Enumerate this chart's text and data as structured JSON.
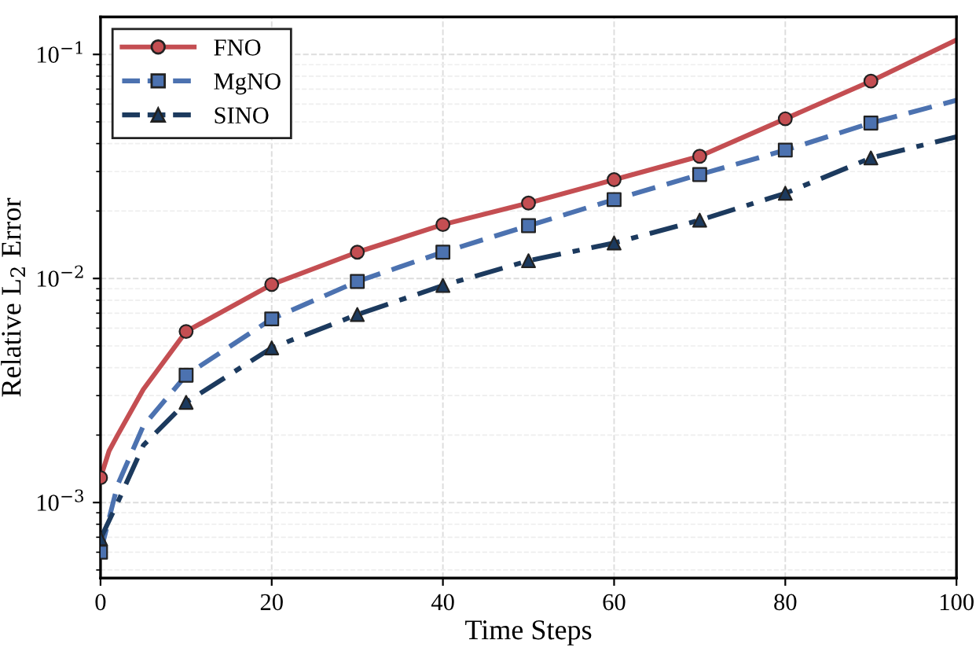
{
  "chart_data": {
    "type": "line",
    "xlabel": "Time Steps",
    "ylabel": "Relative L$_{2}$ Error",
    "log": "y",
    "grid": true,
    "legend": "top left",
    "xlim": [
      0,
      100
    ],
    "xticks": [
      0,
      20,
      40,
      60,
      80,
      100
    ],
    "ylim": [
      0.00046,
      0.147
    ],
    "yticks": [
      {
        "value": 0.001,
        "label": "10$^{−3}$"
      },
      {
        "value": 0.01,
        "label": "10$^{−2}$"
      },
      {
        "value": 0.1,
        "label": "10$^{−1}$"
      }
    ],
    "series": [
      {
        "name": "FNO",
        "color": "#c44e52",
        "line_style": "solid",
        "marker": "none",
        "x": [
          0,
          1,
          2,
          5,
          10,
          20,
          30,
          40,
          50,
          60,
          70,
          80,
          90,
          100
        ],
        "values": [
          0.00129,
          0.0017,
          0.002,
          0.0032,
          0.0058,
          0.0094,
          0.0131,
          0.0174,
          0.0217,
          0.0276,
          0.0351,
          0.0516,
          0.076,
          0.116
        ]
      },
      {
        "type": "scatter",
        "color": "#c44e52",
        "marker": "circle",
        "x": [
          0,
          10,
          20,
          30,
          40,
          50,
          60,
          70,
          80,
          90
        ],
        "values": [
          0.00129,
          0.0058,
          0.0094,
          0.0131,
          0.0174,
          0.0217,
          0.0276,
          0.0351,
          0.0516,
          0.076
        ]
      },
      {
        "name": "MgNO",
        "color": "#4c72b0",
        "line_style": "dashed",
        "marker": "none",
        "x": [
          0,
          2,
          5,
          10,
          20,
          30,
          40,
          50,
          60,
          70,
          80,
          90,
          100
        ],
        "values": [
          0.0006,
          0.0012,
          0.0022,
          0.0037,
          0.0066,
          0.0097,
          0.0131,
          0.0172,
          0.0225,
          0.0291,
          0.0374,
          0.0494,
          0.0624
        ]
      },
      {
        "type": "scatter",
        "color": "#4c72b0",
        "marker": "square",
        "x": [
          0,
          10,
          20,
          30,
          40,
          50,
          60,
          70,
          80,
          90
        ],
        "values": [
          0.0006,
          0.0037,
          0.0066,
          0.0097,
          0.0131,
          0.0172,
          0.0225,
          0.0291,
          0.0374,
          0.0494
        ]
      },
      {
        "name": "SINO",
        "color": "#1c3a5e",
        "line_style": "dashdot",
        "marker": "none",
        "x": [
          0,
          2,
          5,
          10,
          20,
          30,
          40,
          50,
          60,
          70,
          80,
          90,
          100
        ],
        "values": [
          0.00069,
          0.001,
          0.0018,
          0.0028,
          0.0049,
          0.0069,
          0.0093,
          0.012,
          0.0144,
          0.0182,
          0.024,
          0.0345,
          0.0429
        ]
      },
      {
        "type": "scatter",
        "color": "#1c3a5e",
        "marker": "triangle",
        "x": [
          0,
          10,
          20,
          30,
          40,
          50,
          60,
          70,
          80,
          90
        ],
        "values": [
          0.00069,
          0.0028,
          0.0049,
          0.0069,
          0.0093,
          0.012,
          0.0144,
          0.0182,
          0.024,
          0.0345
        ]
      }
    ]
  }
}
